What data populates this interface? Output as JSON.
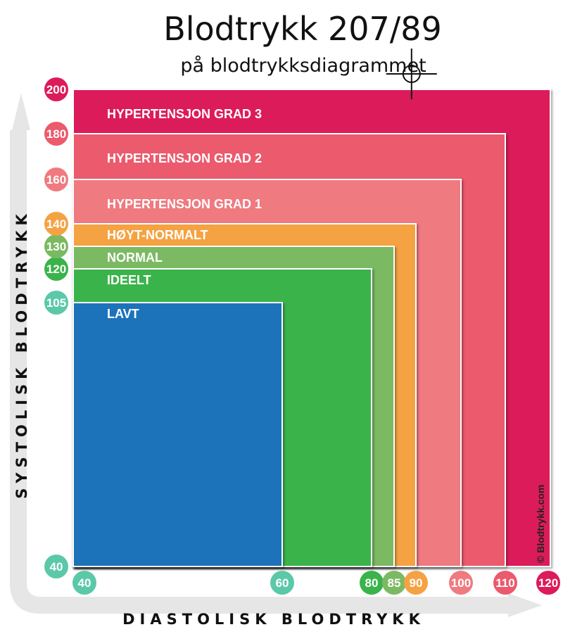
{
  "chart_data": {
    "type": "area",
    "title": "Blodtrykk 207/89",
    "subtitle": "på blodtrykksdiagrammet",
    "xlabel": "DIASTOLISK BLODTRYKK",
    "ylabel": "SYSTOLISK BLODTRYKK",
    "x_ticks": [
      40,
      60,
      80,
      85,
      90,
      100,
      110,
      120
    ],
    "y_ticks": [
      40,
      105,
      120,
      130,
      140,
      160,
      180,
      200
    ],
    "zones": [
      {
        "label": "HYPERTENSJON GRAD 3",
        "max_diastolic": 120,
        "max_systolic": 200,
        "color": "#dc1b5a"
      },
      {
        "label": "HYPERTENSJON GRAD 2",
        "max_diastolic": 110,
        "max_systolic": 180,
        "color": "#eb5a6d"
      },
      {
        "label": "HYPERTENSJON GRAD 1",
        "max_diastolic": 100,
        "max_systolic": 160,
        "color": "#ef7a80"
      },
      {
        "label": "HØYT-NORMALT",
        "max_diastolic": 90,
        "max_systolic": 140,
        "color": "#f5a243"
      },
      {
        "label": "NORMAL",
        "max_diastolic": 85,
        "max_systolic": 130,
        "color": "#7cb963"
      },
      {
        "label": "IDEELT",
        "max_diastolic": 80,
        "max_systolic": 120,
        "color": "#3ab34b"
      },
      {
        "label": "LAVT",
        "max_diastolic": 60,
        "max_systolic": 105,
        "color": "#1f73ba"
      }
    ],
    "marker": {
      "diastolic": 89,
      "systolic": 207
    },
    "x_tick_colors": [
      "#5bc8a8",
      "#5bc8a8",
      "#3ab34b",
      "#7cb963",
      "#f5a243",
      "#ef7a80",
      "#eb5a6d",
      "#dc1b5a"
    ],
    "y_tick_colors": [
      "#5bc8a8",
      "#5bc8a8",
      "#3ab34b",
      "#7cb963",
      "#f5a243",
      "#ef7a80",
      "#eb5a6d",
      "#dc1b5a"
    ]
  },
  "copyright": "© Blodtrykk.com"
}
